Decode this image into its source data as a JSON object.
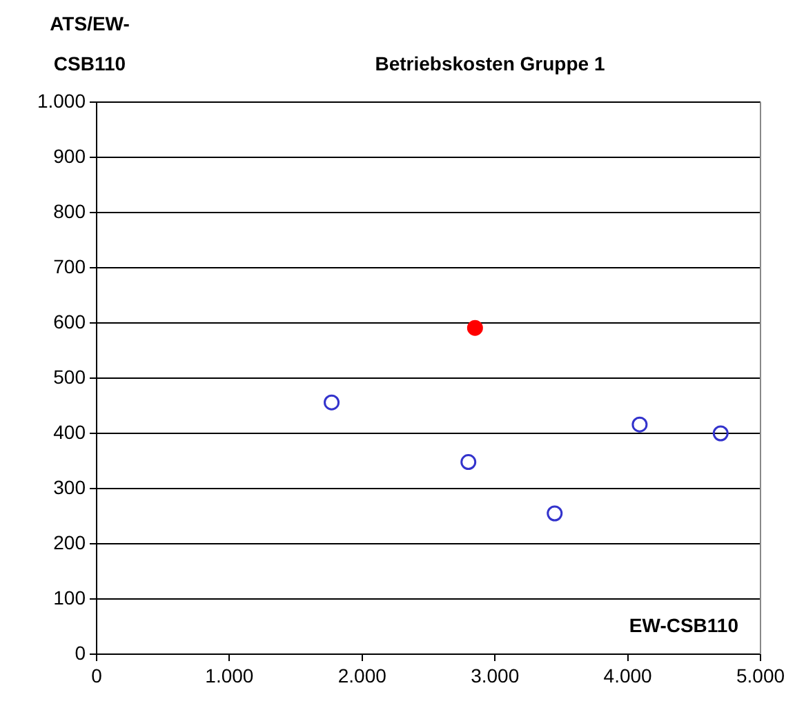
{
  "chart_data": {
    "type": "scatter",
    "title": "Betriebskosten Gruppe 1",
    "ylabel": "ATS/EW-CSB110",
    "xlabel": "EW-CSB110",
    "series": [
      {
        "color": "#3333cc",
        "x": [
          1770,
          2800,
          3450,
          4090,
          4700
        ],
        "values": [
          456,
          348,
          255,
          416,
          400
        ]
      },
      {
        "color": "#ff0000",
        "x": [
          2850
        ],
        "values": [
          591
        ]
      }
    ],
    "xlim": [
      0,
      5000
    ],
    "xticks": [
      0,
      {
        "value": 1000,
        "label": "1.000"
      },
      {
        "value": 2000,
        "label": "2.000"
      },
      {
        "value": 3000,
        "label": "3.000"
      },
      {
        "value": 4000,
        "label": "4.000"
      },
      {
        "value": 5000,
        "label": "5.000"
      }
    ],
    "ylim": [
      0,
      1000
    ],
    "yticks": [
      0,
      100,
      200,
      300,
      400,
      500,
      600,
      700,
      800,
      900,
      {
        "value": 1000,
        "label": "1.000"
      }
    ],
    "grid": "y",
    "legend": false,
    "marker": "circle"
  }
}
